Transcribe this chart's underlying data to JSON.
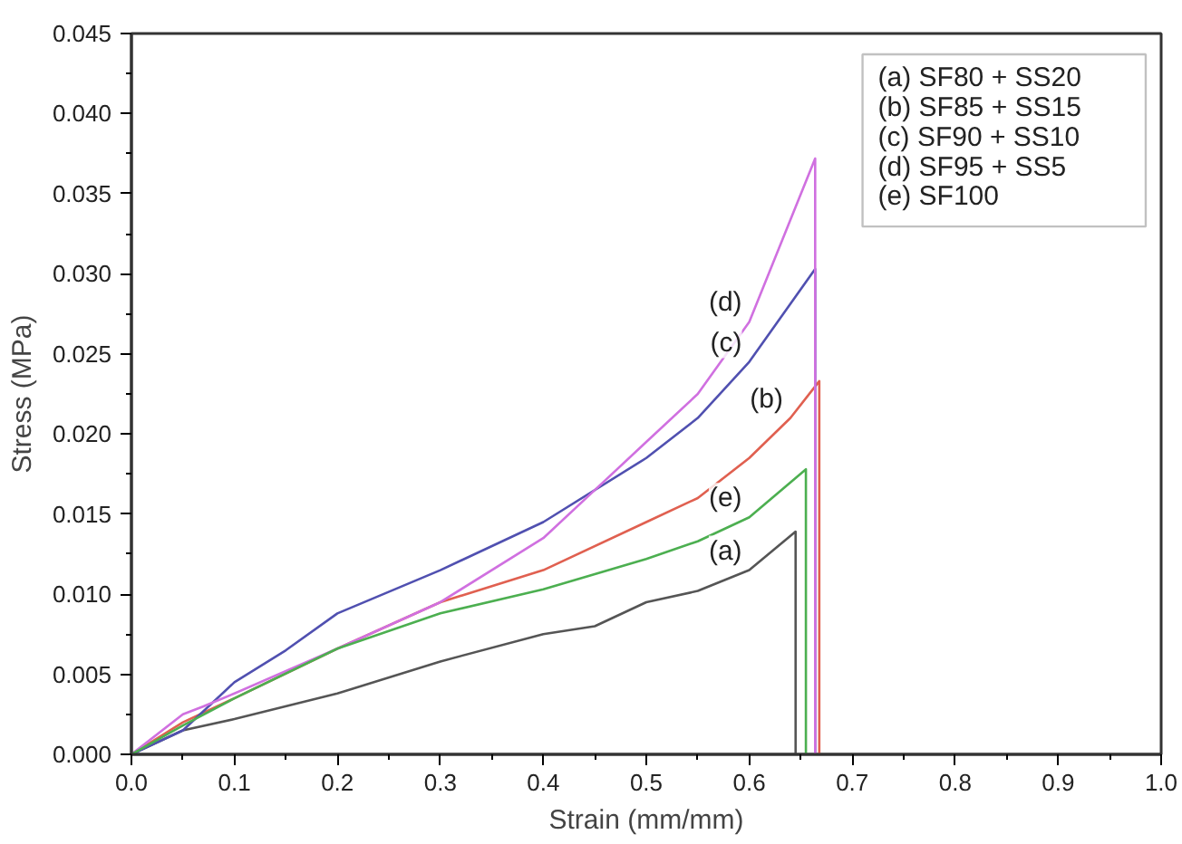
{
  "chart_data": {
    "type": "line",
    "xlabel": "Strain (mm/mm)",
    "ylabel": "Stress (MPa)",
    "xlim": [
      0.0,
      1.0
    ],
    "xticks": [
      {
        "value": 0.0,
        "label": "0.0"
      },
      0.1,
      0.2,
      0.3,
      0.4,
      0.5,
      0.6,
      0.7,
      0.8,
      0.9,
      {
        "value": 1.0,
        "label": "1.0"
      }
    ],
    "ylim": [
      0.0,
      0.045
    ],
    "yticks": [
      {
        "value": 0,
        "label": "0.000"
      },
      {
        "value": 0.005,
        "label": "0.005"
      },
      {
        "value": 0.01,
        "label": "0.010"
      },
      {
        "value": 0.015,
        "label": "0.015"
      },
      {
        "value": 0.02,
        "label": "0.020"
      },
      {
        "value": 0.025,
        "label": "0.025"
      },
      {
        "value": 0.03,
        "label": "0.030"
      },
      {
        "value": 0.035,
        "label": "0.035"
      },
      {
        "value": 0.04,
        "label": "0.040"
      },
      {
        "value": 0.045,
        "label": "0.045"
      }
    ],
    "grid": false,
    "marker": "none",
    "line_style": "solid",
    "annotations": [
      "(a) SF80 + SS20",
      "(b) SF85 + SS15",
      "(c) SF90 + SS10",
      "(d) SF95 + SS5",
      "(e) SF100"
    ],
    "series": [
      {
        "name": "(a)",
        "color": "#555555",
        "x": [
          0,
          0.05,
          0.1,
          0.2,
          0.3,
          0.4,
          0.45,
          0.5,
          0.55,
          0.6,
          0.645,
          0.645
        ],
        "values": [
          0,
          0.0015,
          0.0022,
          0.0038,
          0.0058,
          0.0075,
          0.008,
          0.0095,
          0.0102,
          0.0115,
          0.0139,
          0
        ]
      },
      {
        "name": "(b)",
        "color": "#e06050",
        "x": [
          0,
          0.05,
          0.1,
          0.2,
          0.3,
          0.4,
          0.5,
          0.55,
          0.6,
          0.64,
          0.668,
          0.668
        ],
        "values": [
          0,
          0.002,
          0.0035,
          0.0066,
          0.0095,
          0.0115,
          0.0145,
          0.016,
          0.0185,
          0.021,
          0.0233,
          0
        ]
      },
      {
        "name": "(c)",
        "color": "#5050b0",
        "x": [
          0,
          0.05,
          0.1,
          0.15,
          0.2,
          0.3,
          0.4,
          0.5,
          0.55,
          0.6,
          0.664,
          0.664
        ],
        "values": [
          0,
          0.0015,
          0.0045,
          0.0065,
          0.0088,
          0.0115,
          0.0145,
          0.0185,
          0.021,
          0.0245,
          0.0303,
          0
        ]
      },
      {
        "name": "(d)",
        "color": "#d070e0",
        "x": [
          0,
          0.05,
          0.07,
          0.1,
          0.2,
          0.3,
          0.4,
          0.45,
          0.5,
          0.55,
          0.6,
          0.664,
          0.664
        ],
        "values": [
          0,
          0.0025,
          0.003,
          0.0038,
          0.0066,
          0.0095,
          0.0135,
          0.0165,
          0.0195,
          0.0225,
          0.027,
          0.0372,
          0
        ]
      },
      {
        "name": "(e)",
        "color": "#4caf50",
        "x": [
          0,
          0.05,
          0.1,
          0.2,
          0.3,
          0.4,
          0.5,
          0.55,
          0.6,
          0.655,
          0.655
        ],
        "values": [
          0,
          0.0018,
          0.0035,
          0.0066,
          0.0088,
          0.0103,
          0.0122,
          0.0133,
          0.0148,
          0.0178,
          0
        ]
      }
    ]
  }
}
